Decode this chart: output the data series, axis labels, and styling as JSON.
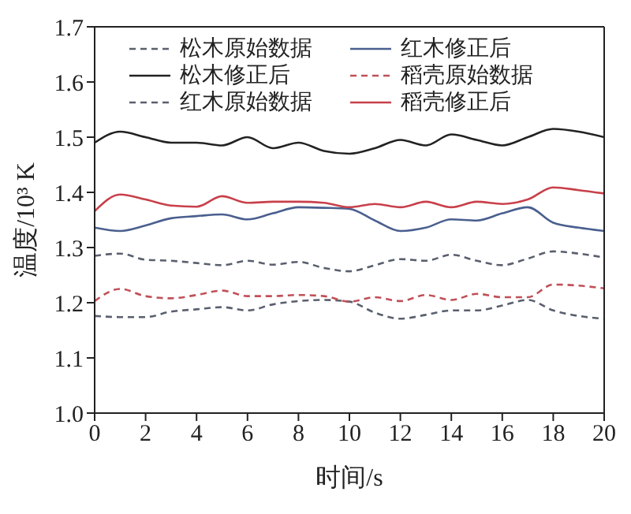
{
  "chart_data": {
    "type": "line",
    "xlabel": "时间/s",
    "ylabel": "温度/10³ K",
    "x": [
      0,
      1,
      2,
      3,
      4,
      5,
      6,
      7,
      8,
      9,
      10,
      11,
      12,
      13,
      14,
      15,
      16,
      17,
      18,
      19,
      20
    ],
    "series": [
      {
        "name": "松木原始数据",
        "color": "#5a5f6e",
        "line_style": "dashed",
        "values": [
          1.285,
          1.289,
          1.278,
          1.276,
          1.272,
          1.268,
          1.276,
          1.269,
          1.274,
          1.263,
          1.257,
          1.268,
          1.279,
          1.276,
          1.287,
          1.276,
          1.268,
          1.28,
          1.293,
          1.289,
          1.282
        ]
      },
      {
        "name": "松木修正后",
        "color": "#222222",
        "line_style": "solid",
        "values": [
          1.49,
          1.51,
          1.5,
          1.49,
          1.49,
          1.485,
          1.5,
          1.48,
          1.49,
          1.475,
          1.47,
          1.48,
          1.495,
          1.485,
          1.505,
          1.495,
          1.485,
          1.5,
          1.515,
          1.51,
          1.5
        ]
      },
      {
        "name": "红木原始数据",
        "color": "#5a5f6e",
        "line_style": "dashed",
        "values": [
          1.176,
          1.174,
          1.174,
          1.184,
          1.188,
          1.192,
          1.186,
          1.197,
          1.203,
          1.205,
          1.202,
          1.182,
          1.171,
          1.178,
          1.186,
          1.186,
          1.195,
          1.205,
          1.186,
          1.176,
          1.171
        ]
      },
      {
        "name": "红木修正后",
        "color": "#4a5f8f",
        "line_style": "solid",
        "values": [
          1.336,
          1.33,
          1.34,
          1.353,
          1.357,
          1.36,
          1.351,
          1.362,
          1.373,
          1.372,
          1.37,
          1.349,
          1.33,
          1.336,
          1.351,
          1.349,
          1.362,
          1.373,
          1.345,
          1.336,
          1.33
        ]
      },
      {
        "name": "稻壳原始数据",
        "color": "#c05058",
        "line_style": "dashed",
        "values": [
          1.203,
          1.225,
          1.212,
          1.208,
          1.214,
          1.222,
          1.212,
          1.212,
          1.214,
          1.212,
          1.202,
          1.21,
          1.203,
          1.214,
          1.205,
          1.216,
          1.21,
          1.21,
          1.233,
          1.231,
          1.226
        ]
      },
      {
        "name": "稻壳修正后",
        "color": "#c8404a",
        "line_style": "solid",
        "values": [
          1.366,
          1.396,
          1.387,
          1.376,
          1.374,
          1.393,
          1.381,
          1.383,
          1.383,
          1.381,
          1.373,
          1.379,
          1.373,
          1.383,
          1.373,
          1.383,
          1.379,
          1.387,
          1.409,
          1.404,
          1.398
        ]
      }
    ],
    "xlim": [
      0,
      20
    ],
    "xticks": [
      0,
      2,
      4,
      6,
      8,
      10,
      12,
      14,
      16,
      18,
      20
    ],
    "ylim": [
      1.0,
      1.7
    ],
    "yticks": [
      {
        "value": 1.0,
        "label": "1.0"
      },
      1.1,
      1.2,
      1.3,
      1.4,
      1.5,
      1.6,
      1.7
    ],
    "legend": "top",
    "grid": false,
    "marker": "none"
  }
}
